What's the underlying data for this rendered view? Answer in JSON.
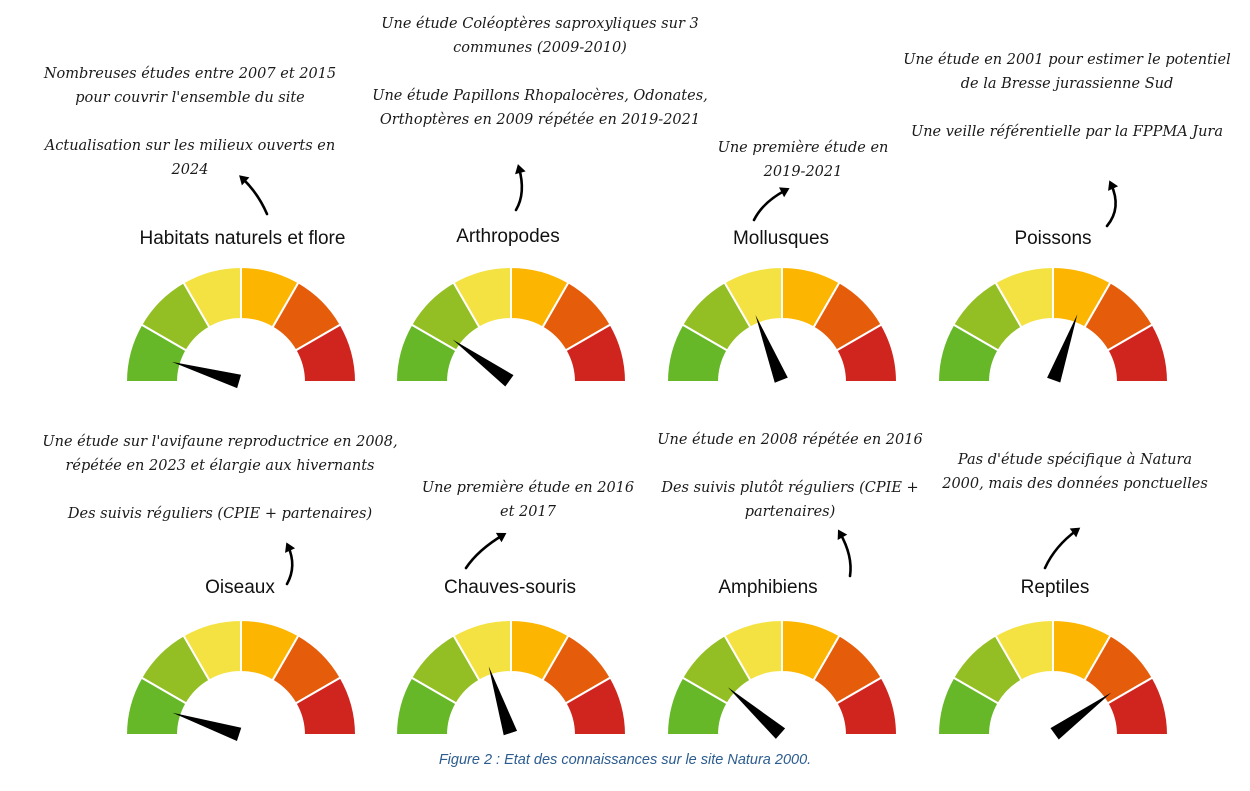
{
  "colors": {
    "segments": [
      "#67b828",
      "#94bf24",
      "#f4e242",
      "#fcb500",
      "#e55d0a",
      "#d0251f"
    ],
    "needle": "#000000",
    "caption": "#2c5c8f"
  },
  "gauges": [
    {
      "title": "Habitats naturels et flore",
      "level": 0.09,
      "note": "Nombreuses études entre 2007 et 2015 pour couvrir l'ensemble du site\n\nActualisation sur les milieux ouverts en 2024",
      "arrow_icon": "curved-arrow-icon"
    },
    {
      "title": "Arthropodes",
      "level": 0.2,
      "note": "Une étude Coléoptères saproxyliques sur 3 communes (2009-2010)\n\nUne étude Papillons Rhopalocères, Odonates, Orthoptères en 2009 répétée en 2019-2021",
      "arrow_icon": "curved-arrow-icon"
    },
    {
      "title": "Mollusques",
      "level": 0.38,
      "note": "Une première étude en 2019-2021",
      "arrow_icon": "curved-arrow-icon"
    },
    {
      "title": "Poissons",
      "level": 0.61,
      "note": "Une étude en 2001 pour estimer le potentiel de la Bresse jurassienne Sud\n\nUne veille référentielle par la FPPMA Jura",
      "arrow_icon": "curved-arrow-icon"
    },
    {
      "title": "Oiseaux",
      "level": 0.1,
      "note": "Une étude sur l'avifaune reproductrice en 2008, répétée en 2023 et élargie aux hivernants\n\nDes suivis réguliers (CPIE + partenaires)",
      "arrow_icon": "curved-arrow-icon"
    },
    {
      "title": "Chauves-souris",
      "level": 0.4,
      "note": "Une première étude en 2016 et 2017",
      "arrow_icon": "curved-arrow-icon"
    },
    {
      "title": "Amphibiens",
      "level": 0.23,
      "note": "Une étude en 2008 répétée en 2016\n\nDes suivis plutôt réguliers (CPIE + partenaires)",
      "arrow_icon": "curved-arrow-icon"
    },
    {
      "title": "Reptiles",
      "level": 0.8,
      "note": "Pas d'étude spécifique à Natura 2000, mais des données ponctuelles",
      "arrow_icon": "curved-arrow-icon"
    }
  ],
  "caption": "Figure 2 : Etat des connaissances sur le site Natura 2000."
}
